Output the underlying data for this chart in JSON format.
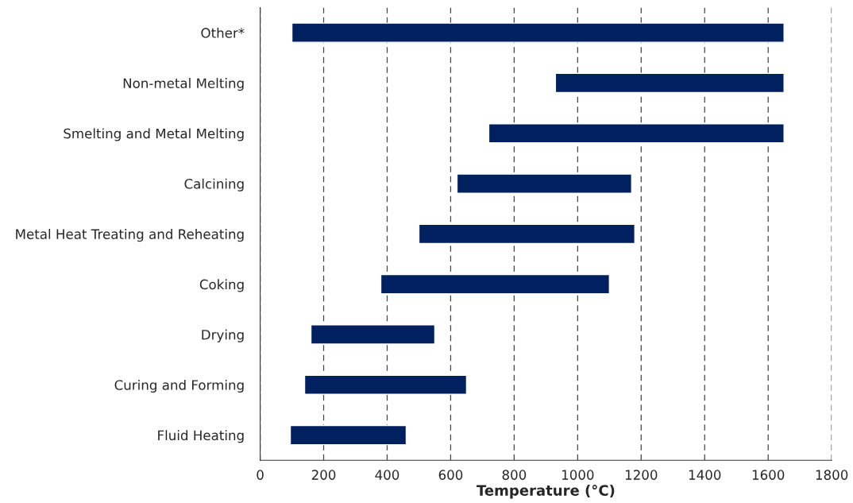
{
  "chart_data": {
    "type": "bar",
    "orientation": "horizontal",
    "xlabel": "Temperature (°C)",
    "categories": [
      "Other*",
      "Non-metal Melting",
      "Smelting and Metal Melting",
      "Calcining",
      "Metal Heat Treating and Reheating",
      "Coking",
      "Drying",
      "Curing and Forming",
      "Fluid Heating"
    ],
    "base": [
      100,
      930,
      720,
      620,
      500,
      380,
      160,
      140,
      95
    ],
    "values": [
      1550,
      720,
      930,
      550,
      680,
      720,
      390,
      510,
      365
    ],
    "color": "#002060",
    "xlim": [
      0,
      1800
    ],
    "xticks": [
      0,
      200,
      400,
      600,
      800,
      1000,
      1200,
      1400,
      1600,
      1800
    ],
    "grid": "x",
    "legend": false
  }
}
